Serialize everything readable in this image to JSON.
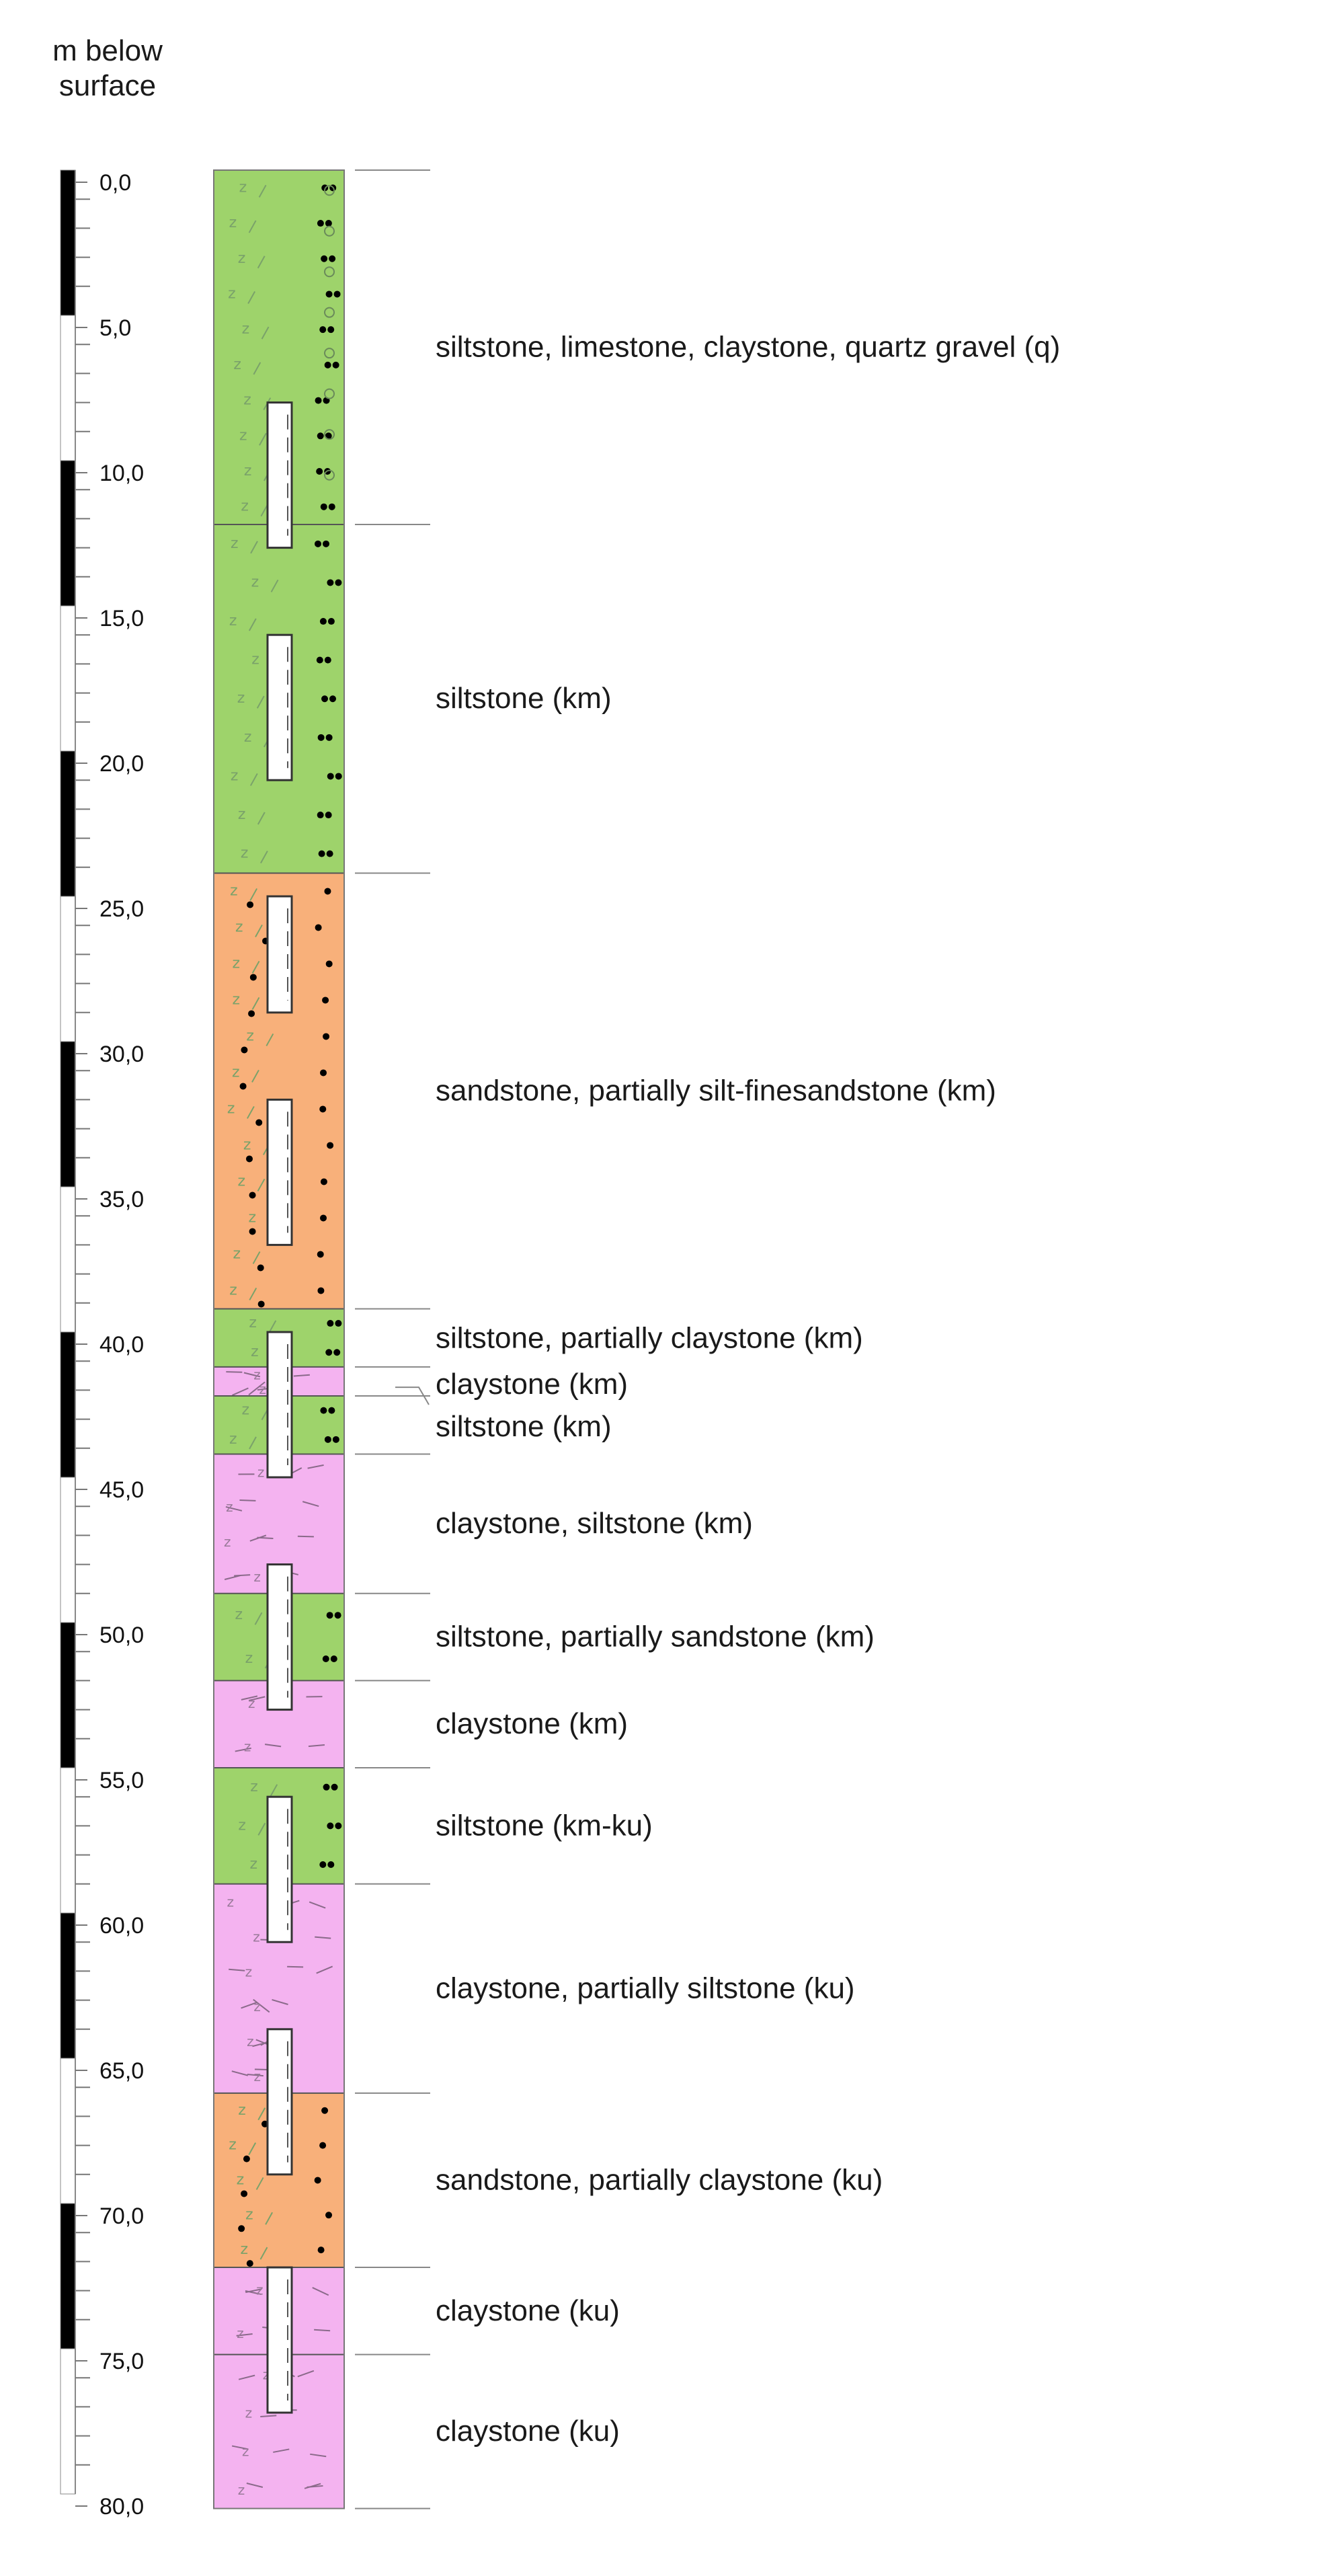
{
  "header": {
    "line1": "m below",
    "line2": "surface"
  },
  "depth_axis": {
    "unit": "m below surface",
    "min": 0,
    "max": 80,
    "labels": [
      "0,0",
      "5,0",
      "10,0",
      "15,0",
      "20,0",
      "25,0",
      "30,0",
      "35,0",
      "40,0",
      "45,0",
      "50,0",
      "55,0",
      "60,0",
      "65,0",
      "70,0",
      "75,0",
      "80,0"
    ],
    "scale_bar": "alternating black and white 5 m segments"
  },
  "colors": {
    "siltstone": "#9ed36b",
    "sandstone": "#f8b07a",
    "claystone": "#f4b3f0",
    "black": "#000000",
    "line": "#555555"
  },
  "layers": [
    {
      "top": 0.0,
      "bottom": 12.2,
      "lithology": "siltstone",
      "label": "siltstone, limestone, claystone, quartz gravel (q)"
    },
    {
      "top": 12.2,
      "bottom": 24.2,
      "lithology": "siltstone",
      "label": "siltstone (km)"
    },
    {
      "top": 24.2,
      "bottom": 39.2,
      "lithology": "sandstone",
      "label": "sandstone, partially silt-finesandstone (km)"
    },
    {
      "top": 39.2,
      "bottom": 41.2,
      "lithology": "siltstone",
      "label": "siltstone, partially claystone (km)"
    },
    {
      "top": 41.2,
      "bottom": 42.2,
      "lithology": "claystone",
      "label": "claystone (km)"
    },
    {
      "top": 42.2,
      "bottom": 44.2,
      "lithology": "siltstone",
      "label": "siltstone (km)"
    },
    {
      "top": 44.2,
      "bottom": 49.0,
      "lithology": "claystone",
      "label": "claystone, siltstone (km)"
    },
    {
      "top": 49.0,
      "bottom": 52.0,
      "lithology": "siltstone",
      "label": "siltstone, partially sandstone (km)"
    },
    {
      "top": 52.0,
      "bottom": 55.0,
      "lithology": "claystone",
      "label": "claystone (km)"
    },
    {
      "top": 55.0,
      "bottom": 59.0,
      "lithology": "siltstone",
      "label": "siltstone (km-ku)"
    },
    {
      "top": 59.0,
      "bottom": 66.2,
      "lithology": "claystone",
      "label": "claystone, partially siltstone (ku)"
    },
    {
      "top": 66.2,
      "bottom": 72.2,
      "lithology": "sandstone",
      "label": "sandstone, partially claystone (ku)"
    },
    {
      "top": 72.2,
      "bottom": 75.2,
      "lithology": "claystone",
      "label": "claystone (ku)"
    },
    {
      "top": 75.2,
      "bottom": 80.5,
      "lithology": "claystone",
      "label": "claystone (ku)"
    }
  ],
  "casing_segments": [
    {
      "top": 8.0,
      "bottom": 13.0
    },
    {
      "top": 16.0,
      "bottom": 21.0
    },
    {
      "top": 25.0,
      "bottom": 29.0
    },
    {
      "top": 32.0,
      "bottom": 37.0
    },
    {
      "top": 40.0,
      "bottom": 45.0
    },
    {
      "top": 48.0,
      "bottom": 53.0
    },
    {
      "top": 56.0,
      "bottom": 61.0
    },
    {
      "top": 64.0,
      "bottom": 69.0
    },
    {
      "top": 72.2,
      "bottom": 77.2
    }
  ]
}
